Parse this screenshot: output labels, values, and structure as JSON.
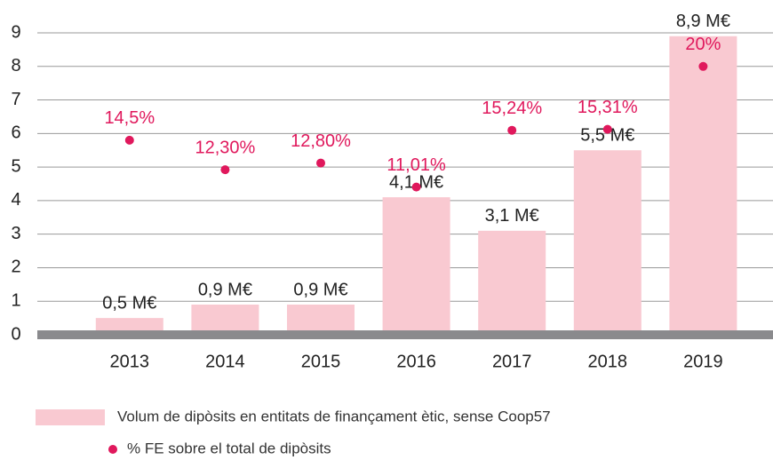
{
  "chart_data": {
    "type": "bar",
    "categories": [
      "2013",
      "2014",
      "2015",
      "2016",
      "2017",
      "2018",
      "2019"
    ],
    "series": [
      {
        "name": "Volum de dipòsits en entitats de finançament ètic, sense Coop57",
        "type": "bar",
        "color": "#f9c9d1",
        "values": [
          0.5,
          0.9,
          0.9,
          4.1,
          3.1,
          5.5,
          8.9
        ],
        "value_labels": [
          "0,5 M€",
          "0,9 M€",
          "0,9 M€",
          "4,1 M€",
          "3,1 M€",
          "5,5 M€",
          "8,9 M€"
        ]
      },
      {
        "name": "% FE sobre el total de dipòsits",
        "type": "scatter",
        "color": "#e0185c",
        "axis": "y2",
        "values": [
          14.5,
          12.3,
          12.8,
          11.01,
          15.24,
          15.31,
          20
        ],
        "value_labels": [
          "14,5%",
          "12,30%",
          "12,80%",
          "11,01%",
          "15,24%",
          "15,31%",
          "20%"
        ]
      }
    ],
    "ylim": [
      0,
      9
    ],
    "yticks": [
      0,
      1,
      2,
      3,
      4,
      5,
      6,
      7,
      8,
      9
    ],
    "y2lim": [
      0,
      22.5
    ],
    "grid": true,
    "legend": "bottom"
  }
}
